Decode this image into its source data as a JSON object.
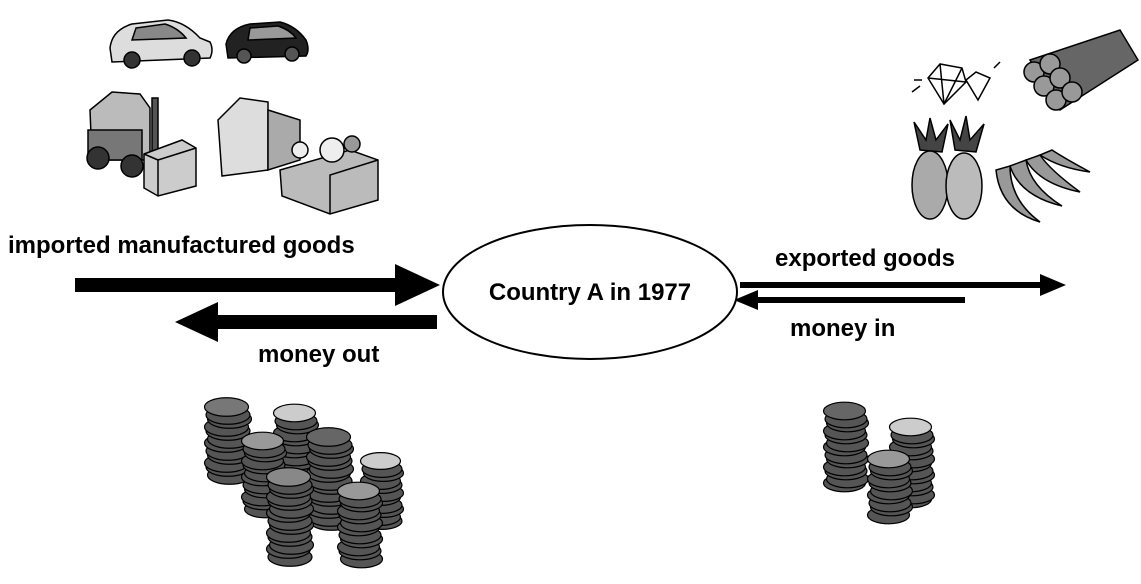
{
  "diagram": {
    "center": "Country A in 1977",
    "imports": "imported manufactured goods",
    "money_out": "money out",
    "exports": "exported goods",
    "money_in": "money in"
  }
}
